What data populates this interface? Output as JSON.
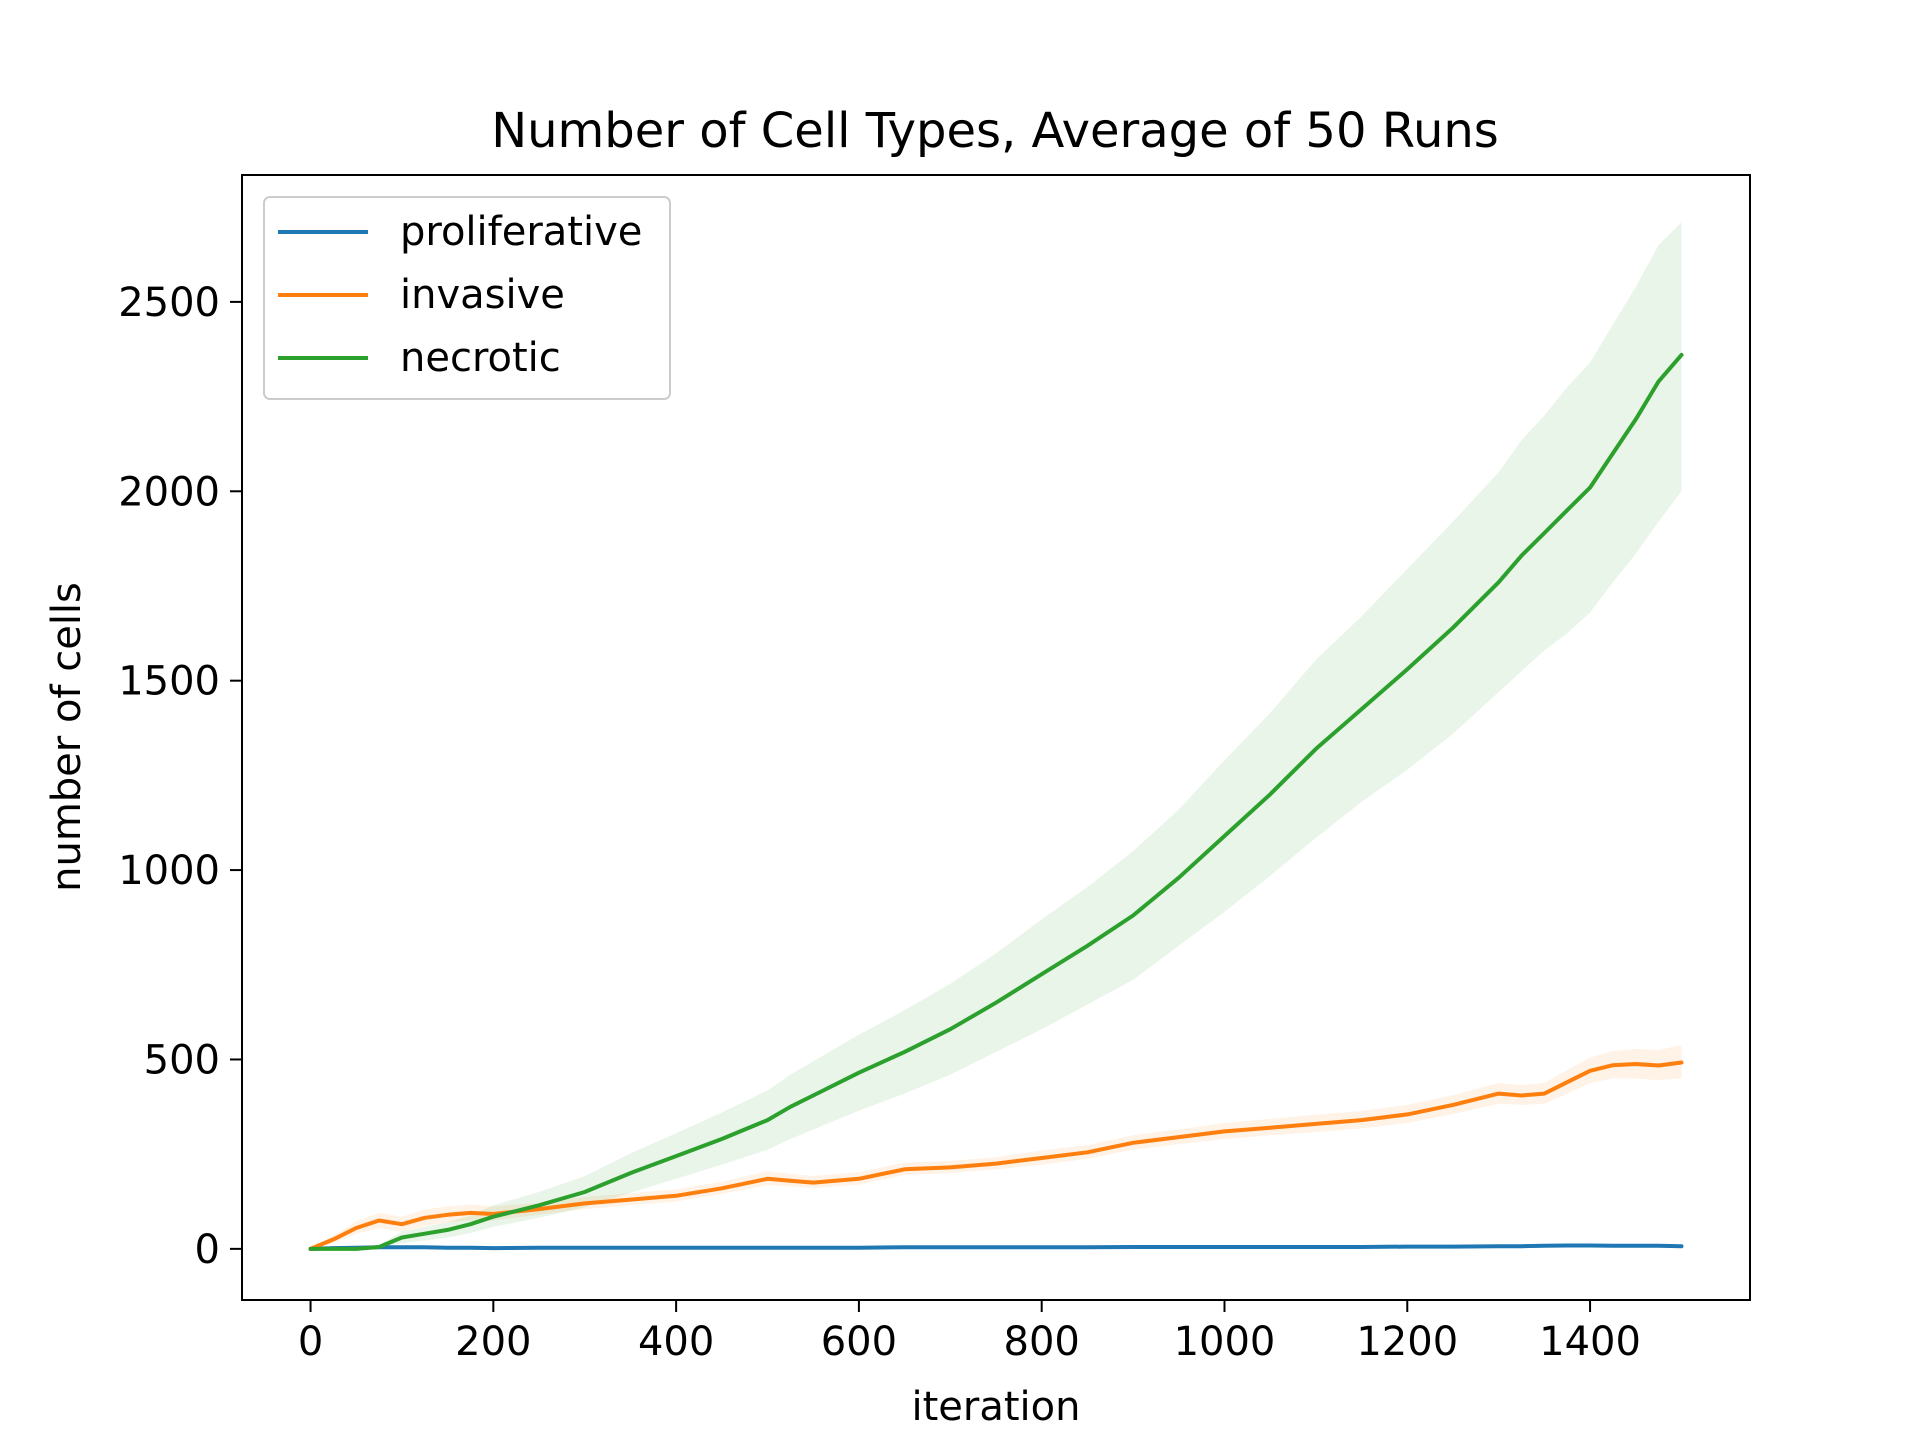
{
  "chart_data": {
    "type": "line",
    "title": "Number of Cell Types, Average of 50 Runs",
    "xlabel": "iteration",
    "ylabel": "number of cells",
    "xlim": [
      -75,
      1575
    ],
    "ylim": [
      -135,
      2835
    ],
    "xticks": [
      0,
      200,
      400,
      600,
      800,
      1000,
      1200,
      1400
    ],
    "yticks": [
      0,
      500,
      1000,
      1500,
      2000,
      2500
    ],
    "grid": false,
    "legend_position": "top-left",
    "x": [
      0,
      25,
      50,
      75,
      100,
      125,
      150,
      175,
      200,
      250,
      300,
      350,
      400,
      450,
      500,
      525,
      550,
      600,
      650,
      700,
      750,
      800,
      850,
      900,
      950,
      1000,
      1050,
      1100,
      1150,
      1200,
      1250,
      1300,
      1325,
      1350,
      1375,
      1400,
      1425,
      1450,
      1475,
      1500
    ],
    "series": [
      {
        "name": "proliferative",
        "color": "#1f77b4",
        "values": [
          0,
          2,
          3,
          4,
          4,
          4,
          3,
          3,
          2,
          3,
          3,
          3,
          3,
          3,
          3,
          3,
          3,
          3,
          4,
          4,
          4,
          4,
          4,
          5,
          5,
          5,
          5,
          5,
          5,
          6,
          6,
          7,
          7,
          8,
          9,
          9,
          8,
          8,
          8,
          7
        ]
      },
      {
        "name": "invasive",
        "color": "#ff7f0e",
        "values": [
          0,
          25,
          55,
          75,
          65,
          82,
          90,
          95,
          92,
          105,
          120,
          130,
          140,
          160,
          185,
          180,
          175,
          185,
          210,
          215,
          225,
          240,
          255,
          280,
          295,
          310,
          320,
          330,
          340,
          355,
          380,
          410,
          405,
          410,
          440,
          470,
          485,
          488,
          484,
          492
        ],
        "band_lower": [
          0,
          15,
          40,
          55,
          45,
          60,
          70,
          75,
          75,
          90,
          105,
          115,
          125,
          145,
          168,
          165,
          160,
          170,
          195,
          200,
          210,
          222,
          238,
          262,
          276,
          290,
          300,
          308,
          318,
          332,
          356,
          383,
          380,
          383,
          410,
          438,
          450,
          450,
          445,
          450
        ],
        "band_upper": [
          0,
          35,
          72,
          95,
          85,
          104,
          112,
          117,
          112,
          122,
          137,
          147,
          157,
          177,
          205,
          198,
          192,
          202,
          228,
          232,
          242,
          260,
          274,
          300,
          316,
          332,
          343,
          354,
          364,
          380,
          406,
          438,
          432,
          438,
          472,
          505,
          522,
          528,
          525,
          538
        ]
      },
      {
        "name": "necrotic",
        "color": "#2ca02c",
        "values": [
          0,
          0,
          0,
          5,
          30,
          40,
          50,
          65,
          85,
          115,
          150,
          200,
          245,
          290,
          340,
          375,
          405,
          465,
          520,
          580,
          650,
          725,
          800,
          880,
          980,
          1090,
          1200,
          1320,
          1425,
          1530,
          1640,
          1760,
          1830,
          1890,
          1950,
          2010,
          2100,
          2190,
          2290,
          2360
        ],
        "band_lower": [
          0,
          0,
          0,
          2,
          15,
          22,
          30,
          42,
          58,
          82,
          110,
          148,
          185,
          222,
          262,
          290,
          315,
          365,
          410,
          460,
          520,
          580,
          645,
          710,
          800,
          890,
          985,
          1085,
          1180,
          1265,
          1360,
          1470,
          1525,
          1580,
          1625,
          1680,
          1760,
          1835,
          1920,
          2000
        ],
        "band_upper": [
          0,
          0,
          0,
          10,
          45,
          58,
          70,
          88,
          115,
          150,
          192,
          252,
          305,
          360,
          418,
          460,
          495,
          565,
          630,
          700,
          780,
          870,
          955,
          1050,
          1160,
          1290,
          1415,
          1555,
          1670,
          1795,
          1920,
          2050,
          2135,
          2200,
          2275,
          2340,
          2440,
          2540,
          2650,
          2710
        ]
      }
    ]
  }
}
